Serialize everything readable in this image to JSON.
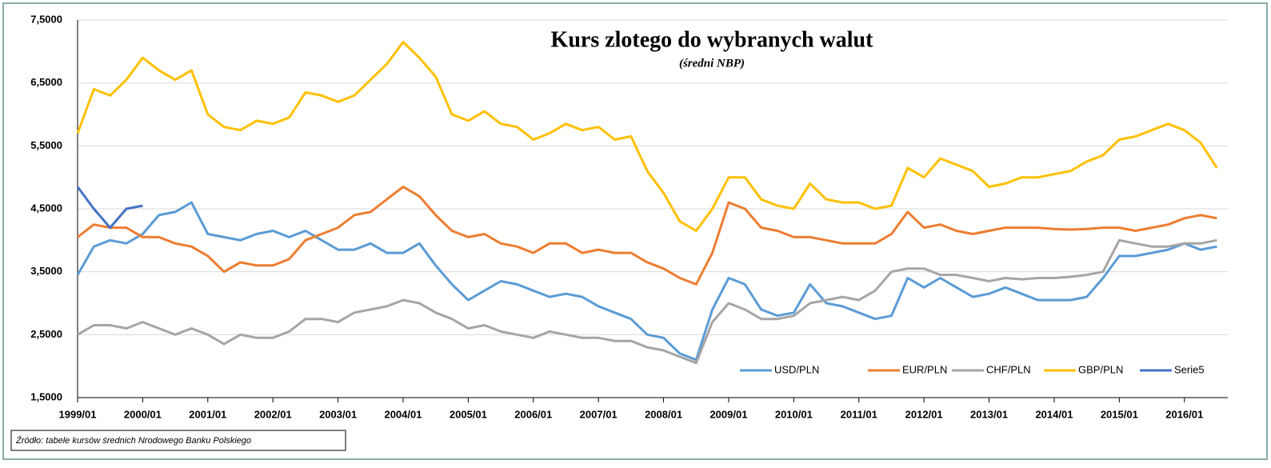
{
  "chart_data": {
    "type": "line",
    "title": "Kurs zlotego do wybranych walut",
    "subtitle": "(średni NBP)",
    "source": "Źródło: tabele kursów średnich Nrodowego Banku Polskiego",
    "x": [
      "1999/01",
      "1999/04",
      "1999/07",
      "1999/10",
      "2000/01",
      "2000/04",
      "2000/07",
      "2000/10",
      "2001/01",
      "2001/04",
      "2001/07",
      "2001/10",
      "2002/01",
      "2002/04",
      "2002/07",
      "2002/10",
      "2003/01",
      "2003/04",
      "2003/07",
      "2003/10",
      "2004/01",
      "2004/04",
      "2004/07",
      "2004/10",
      "2005/01",
      "2005/04",
      "2005/07",
      "2005/10",
      "2006/01",
      "2006/04",
      "2006/07",
      "2006/10",
      "2007/01",
      "2007/04",
      "2007/07",
      "2007/10",
      "2008/01",
      "2008/04",
      "2008/07",
      "2008/10",
      "2009/01",
      "2009/04",
      "2009/07",
      "2009/10",
      "2010/01",
      "2010/04",
      "2010/07",
      "2010/10",
      "2011/01",
      "2011/04",
      "2011/07",
      "2011/10",
      "2012/01",
      "2012/04",
      "2012/07",
      "2012/10",
      "2013/01",
      "2013/04",
      "2013/07",
      "2013/10",
      "2014/01",
      "2014/04",
      "2014/07",
      "2014/10",
      "2015/01",
      "2015/04",
      "2015/07",
      "2015/10",
      "2016/01",
      "2016/04",
      "2016/07"
    ],
    "series": [
      {
        "name": "USD/PLN",
        "color": "#5b9bd5",
        "values": [
          3.45,
          3.9,
          4.0,
          3.95,
          4.1,
          4.4,
          4.45,
          4.6,
          4.1,
          4.05,
          4.0,
          4.1,
          4.15,
          4.05,
          4.15,
          4.0,
          3.85,
          3.85,
          3.95,
          3.8,
          3.8,
          3.95,
          3.6,
          3.3,
          3.05,
          3.2,
          3.35,
          3.3,
          3.2,
          3.1,
          3.15,
          3.1,
          2.95,
          2.85,
          2.75,
          2.5,
          2.45,
          2.2,
          2.1,
          2.9,
          3.4,
          3.3,
          2.9,
          2.8,
          2.85,
          3.3,
          3.0,
          2.95,
          2.85,
          2.75,
          2.8,
          3.4,
          3.25,
          3.4,
          3.25,
          3.1,
          3.15,
          3.25,
          3.15,
          3.05,
          3.05,
          3.05,
          3.1,
          3.4,
          3.75,
          3.75,
          3.8,
          3.85,
          3.95,
          3.85,
          3.9
        ]
      },
      {
        "name": "EUR/PLN",
        "color": "#ed7d31",
        "values": [
          4.05,
          4.25,
          4.2,
          4.2,
          4.05,
          4.05,
          3.95,
          3.9,
          3.75,
          3.5,
          3.65,
          3.6,
          3.6,
          3.7,
          4.0,
          4.1,
          4.2,
          4.4,
          4.45,
          4.65,
          4.85,
          4.7,
          4.4,
          4.15,
          4.05,
          4.1,
          3.95,
          3.9,
          3.8,
          3.95,
          3.95,
          3.8,
          3.85,
          3.8,
          3.8,
          3.65,
          3.55,
          3.4,
          3.3,
          3.8,
          4.6,
          4.5,
          4.2,
          4.15,
          4.05,
          4.05,
          4.0,
          3.95,
          3.95,
          3.95,
          4.1,
          4.45,
          4.2,
          4.25,
          4.15,
          4.1,
          4.15,
          4.2,
          4.2,
          4.2,
          4.18,
          4.17,
          4.18,
          4.2,
          4.2,
          4.15,
          4.2,
          4.25,
          4.35,
          4.4,
          4.35
        ]
      },
      {
        "name": "CHF/PLN",
        "color": "#a5a5a5",
        "values": [
          2.5,
          2.65,
          2.65,
          2.6,
          2.7,
          2.6,
          2.5,
          2.6,
          2.5,
          2.35,
          2.5,
          2.45,
          2.45,
          2.55,
          2.75,
          2.75,
          2.7,
          2.85,
          2.9,
          2.95,
          3.05,
          3.0,
          2.85,
          2.75,
          2.6,
          2.65,
          2.55,
          2.5,
          2.45,
          2.55,
          2.5,
          2.45,
          2.45,
          2.4,
          2.4,
          2.3,
          2.25,
          2.15,
          2.05,
          2.7,
          3.0,
          2.9,
          2.75,
          2.75,
          2.8,
          3.0,
          3.05,
          3.1,
          3.05,
          3.2,
          3.5,
          3.55,
          3.55,
          3.45,
          3.45,
          3.4,
          3.35,
          3.4,
          3.38,
          3.4,
          3.4,
          3.42,
          3.45,
          3.5,
          4.0,
          3.95,
          3.9,
          3.9,
          3.95,
          3.95,
          4.0
        ]
      },
      {
        "name": "GBP/PLN",
        "color": "#ffc000",
        "values": [
          5.7,
          6.4,
          6.3,
          6.55,
          6.9,
          6.7,
          6.55,
          6.7,
          6.0,
          5.8,
          5.75,
          5.9,
          5.85,
          5.95,
          6.35,
          6.3,
          6.2,
          6.3,
          6.55,
          6.8,
          7.15,
          6.9,
          6.6,
          6.0,
          5.9,
          6.05,
          5.85,
          5.8,
          5.6,
          5.7,
          5.85,
          5.75,
          5.8,
          5.6,
          5.65,
          5.1,
          4.75,
          4.3,
          4.15,
          4.5,
          5.0,
          5.0,
          4.65,
          4.55,
          4.5,
          4.9,
          4.65,
          4.6,
          4.6,
          4.5,
          4.55,
          5.15,
          5.0,
          5.3,
          5.2,
          5.1,
          4.85,
          4.9,
          5.0,
          5.0,
          5.05,
          5.1,
          5.25,
          5.35,
          5.6,
          5.65,
          5.75,
          5.85,
          5.75,
          5.55,
          5.15
        ]
      },
      {
        "name": "Serie5",
        "color": "#4472c4",
        "values": [
          4.85,
          4.5,
          4.2,
          4.5,
          4.55,
          null,
          null,
          null,
          null,
          null,
          null,
          null,
          null,
          null,
          null,
          null,
          null,
          null,
          null,
          null,
          null,
          null,
          null,
          null,
          null,
          null,
          null,
          null,
          null,
          null,
          null,
          null,
          null,
          null,
          null,
          null,
          null,
          null,
          null,
          null,
          null,
          null,
          null,
          null,
          null,
          null,
          null,
          null,
          null,
          null,
          null,
          null,
          null,
          null,
          null,
          null,
          null,
          null,
          null,
          null,
          null,
          null,
          null,
          null,
          null,
          null,
          null,
          null,
          null,
          null,
          null
        ]
      }
    ],
    "xlim": [
      "1999/01",
      "2016/09"
    ],
    "xticks": [
      "1999/01",
      "2000/01",
      "2001/01",
      "2002/01",
      "2003/01",
      "2004/01",
      "2005/01",
      "2006/01",
      "2007/01",
      "2008/01",
      "2009/01",
      "2010/01",
      "2011/01",
      "2012/01",
      "2013/01",
      "2014/01",
      "2015/01",
      "2016/01"
    ],
    "ylim": [
      1.5,
      7.5
    ],
    "yticks": [
      {
        "value": 1.5,
        "label": "1,5000"
      },
      {
        "value": 2.5,
        "label": "2,5000"
      },
      {
        "value": 3.5,
        "label": "3,5000"
      },
      {
        "value": 4.5,
        "label": "4,5000"
      },
      {
        "value": 5.5,
        "label": "5,5000"
      },
      {
        "value": 6.5,
        "label": "6,5000"
      },
      {
        "value": 7.5,
        "label": "7,5000"
      }
    ],
    "grid": true
  }
}
